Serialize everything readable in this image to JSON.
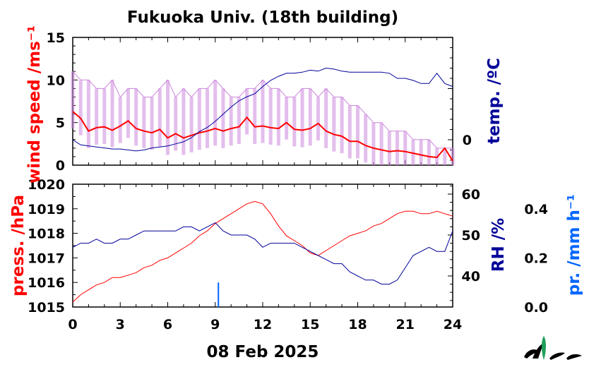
{
  "title": "Fukuoka Univ. (18th building)",
  "date_label": "08 Feb 2025",
  "chart_data": [
    {
      "type": "line",
      "panel": "top",
      "left_axis": {
        "label": "wind speed /ms⁻¹",
        "range": [
          0,
          15
        ],
        "ticks": [
          "0",
          "5",
          "10",
          "15"
        ],
        "color": "#ff0000"
      },
      "right_axis": {
        "label": "temp. /ºC",
        "ticks": [
          "0"
        ],
        "color": "#000099"
      },
      "x": {
        "range": [
          0,
          24
        ],
        "unit": "hour"
      },
      "series": [
        {
          "id": "wind_gust",
          "color": "#cc88dd",
          "hour": [
            0,
            0.5,
            1,
            1.5,
            2,
            2.5,
            3,
            3.5,
            4,
            4.5,
            5,
            5.5,
            6,
            6.5,
            7,
            7.5,
            8,
            8.5,
            9,
            9.5,
            10,
            10.5,
            11,
            11.5,
            12,
            12.5,
            13,
            13.5,
            14,
            14.5,
            15,
            15.5,
            16,
            16.5,
            17,
            17.5,
            18,
            18.5,
            19,
            19.5,
            20,
            20.5,
            21,
            21.5,
            22,
            22.5,
            23,
            23.5,
            24
          ],
          "value": [
            11,
            10,
            10,
            9,
            9,
            10,
            8,
            9,
            9,
            8,
            8,
            9,
            10,
            8,
            9,
            8,
            9,
            9,
            10,
            9,
            8,
            8,
            9,
            9,
            10,
            9,
            9,
            8,
            8,
            9,
            9,
            8,
            9,
            8,
            8,
            7,
            7,
            6,
            5,
            5,
            4,
            4,
            4,
            3,
            3,
            3,
            2,
            2,
            2
          ]
        },
        {
          "id": "wind_mean",
          "color": "#ff0000",
          "hour": [
            0,
            0.5,
            1,
            1.5,
            2,
            2.5,
            3,
            3.5,
            4,
            4.5,
            5,
            5.5,
            6,
            6.5,
            7,
            7.5,
            8,
            8.5,
            9,
            9.5,
            10,
            10.5,
            11,
            11.5,
            12,
            12.5,
            13,
            13.5,
            14,
            14.5,
            15,
            15.5,
            16,
            16.5,
            17,
            17.5,
            18,
            18.5,
            19,
            19.5,
            20,
            20.5,
            21,
            21.5,
            22,
            22.5,
            23,
            23.5,
            24
          ],
          "value": [
            6.3,
            5.5,
            4.0,
            4.4,
            4.5,
            4.1,
            4.6,
            5.2,
            4.3,
            4.0,
            3.8,
            4.2,
            3.2,
            3.7,
            3.2,
            3.5,
            3.8,
            4.0,
            4.3,
            4.0,
            4.3,
            4.5,
            5.6,
            4.5,
            4.6,
            4.4,
            4.3,
            5.0,
            4.2,
            4.1,
            4.3,
            4.9,
            4.0,
            3.6,
            3.4,
            2.8,
            2.8,
            2.3,
            2.0,
            1.8,
            1.6,
            1.7,
            1.6,
            1.4,
            1.2,
            1.0,
            0.9,
            2.0,
            0.5
          ]
        },
        {
          "id": "temperature",
          "color": "#000099",
          "unit": "ºC",
          "hour": [
            0,
            0.5,
            1,
            1.5,
            2,
            2.5,
            3,
            3.5,
            4,
            4.5,
            5,
            5.5,
            6,
            6.5,
            7,
            7.5,
            8,
            8.5,
            9,
            9.5,
            10,
            10.5,
            11,
            11.5,
            12,
            12.5,
            13,
            13.5,
            14,
            14.5,
            15,
            15.5,
            16,
            16.5,
            17,
            17.5,
            18,
            18.5,
            19,
            19.5,
            20,
            20.5,
            21,
            21.5,
            22,
            22.5,
            23,
            23.5,
            24
          ],
          "value": [
            0.0,
            -0.5,
            -0.6,
            -0.7,
            -0.8,
            -0.9,
            -0.9,
            -1.0,
            -1.1,
            -1.0,
            -0.8,
            -0.7,
            -0.6,
            -0.4,
            -0.2,
            0.2,
            0.8,
            1.2,
            1.8,
            2.5,
            3.2,
            3.8,
            4.2,
            4.5,
            5.2,
            5.8,
            6.2,
            6.5,
            6.5,
            6.6,
            6.8,
            6.7,
            7.0,
            6.9,
            6.7,
            6.6,
            6.6,
            6.6,
            6.6,
            6.6,
            6.5,
            6.0,
            6.0,
            5.8,
            5.5,
            5.5,
            6.5,
            5.5,
            5.2
          ]
        }
      ]
    },
    {
      "type": "line",
      "panel": "bottom",
      "left_axis": {
        "label": "press. /hPa",
        "range": [
          1015,
          1020
        ],
        "ticks": [
          "1015",
          "1016",
          "1017",
          "1018",
          "1019",
          "1020"
        ],
        "color": "#ff0000"
      },
      "right_axis": {
        "label": "RH /%",
        "ticks": [
          "40",
          "50",
          "60"
        ],
        "color": "#000099"
      },
      "far_right_axis": {
        "label": "pr. /mm h⁻¹",
        "range": [
          0.0,
          0.5
        ],
        "ticks": [
          "0.0",
          "0.2",
          "0.4"
        ],
        "color": "#0066ff"
      },
      "x": {
        "range": [
          0,
          24
        ],
        "ticks": [
          "0",
          "3",
          "6",
          "9",
          "12",
          "15",
          "18",
          "21",
          "24"
        ],
        "unit": "hour"
      },
      "series": [
        {
          "id": "pressure",
          "color": "#ff0000",
          "unit": "hPa",
          "hour": [
            0,
            0.5,
            1,
            1.5,
            2,
            2.5,
            3,
            3.5,
            4,
            4.5,
            5,
            5.5,
            6,
            6.5,
            7,
            7.5,
            8,
            8.5,
            9,
            9.5,
            10,
            10.5,
            11,
            11.5,
            12,
            12.5,
            13,
            13.5,
            14,
            14.5,
            15,
            15.5,
            16,
            16.5,
            17,
            17.5,
            18,
            18.5,
            19,
            19.5,
            20,
            20.5,
            21,
            21.5,
            22,
            22.5,
            23,
            23.5,
            24
          ],
          "value": [
            1015.2,
            1015.5,
            1015.7,
            1015.9,
            1016.0,
            1016.2,
            1016.2,
            1016.3,
            1016.4,
            1016.6,
            1016.7,
            1016.9,
            1017.0,
            1017.2,
            1017.4,
            1017.6,
            1017.9,
            1018.1,
            1018.4,
            1018.6,
            1018.8,
            1019.0,
            1019.2,
            1019.3,
            1019.2,
            1018.8,
            1018.3,
            1017.9,
            1017.7,
            1017.5,
            1017.2,
            1017.1,
            1017.3,
            1017.5,
            1017.7,
            1017.9,
            1018.0,
            1018.1,
            1018.3,
            1018.4,
            1018.6,
            1018.8,
            1018.9,
            1018.9,
            1018.8,
            1018.8,
            1018.9,
            1018.8,
            1018.7
          ]
        },
        {
          "id": "relative_humidity",
          "color": "#000099",
          "unit": "%",
          "hour": [
            0,
            0.5,
            1,
            1.5,
            2,
            2.5,
            3,
            3.5,
            4,
            4.5,
            5,
            5.5,
            6,
            6.5,
            7,
            7.5,
            8,
            8.5,
            9,
            9.5,
            10,
            10.5,
            11,
            11.5,
            12,
            12.5,
            13,
            13.5,
            14,
            14.5,
            15,
            15.5,
            16,
            16.5,
            17,
            17.5,
            18,
            18.5,
            19,
            19.5,
            20,
            20.5,
            21,
            21.5,
            22,
            22.5,
            23,
            23.5,
            24
          ],
          "value": [
            47,
            48,
            48,
            49,
            48,
            48,
            49,
            49,
            50,
            51,
            51,
            51,
            51,
            51,
            52,
            52,
            51,
            52,
            53,
            51,
            50,
            50,
            50,
            49,
            47,
            48,
            48,
            48,
            48,
            47,
            46,
            45,
            44,
            43,
            43,
            41,
            40,
            39,
            39,
            38,
            38,
            39,
            42,
            45,
            46,
            47,
            46,
            46,
            51
          ]
        },
        {
          "id": "precipitation",
          "color": "#0066ff",
          "unit": "mm/h",
          "type": "bar",
          "hour": [
            9.2
          ],
          "value": [
            0.1
          ]
        }
      ]
    }
  ]
}
